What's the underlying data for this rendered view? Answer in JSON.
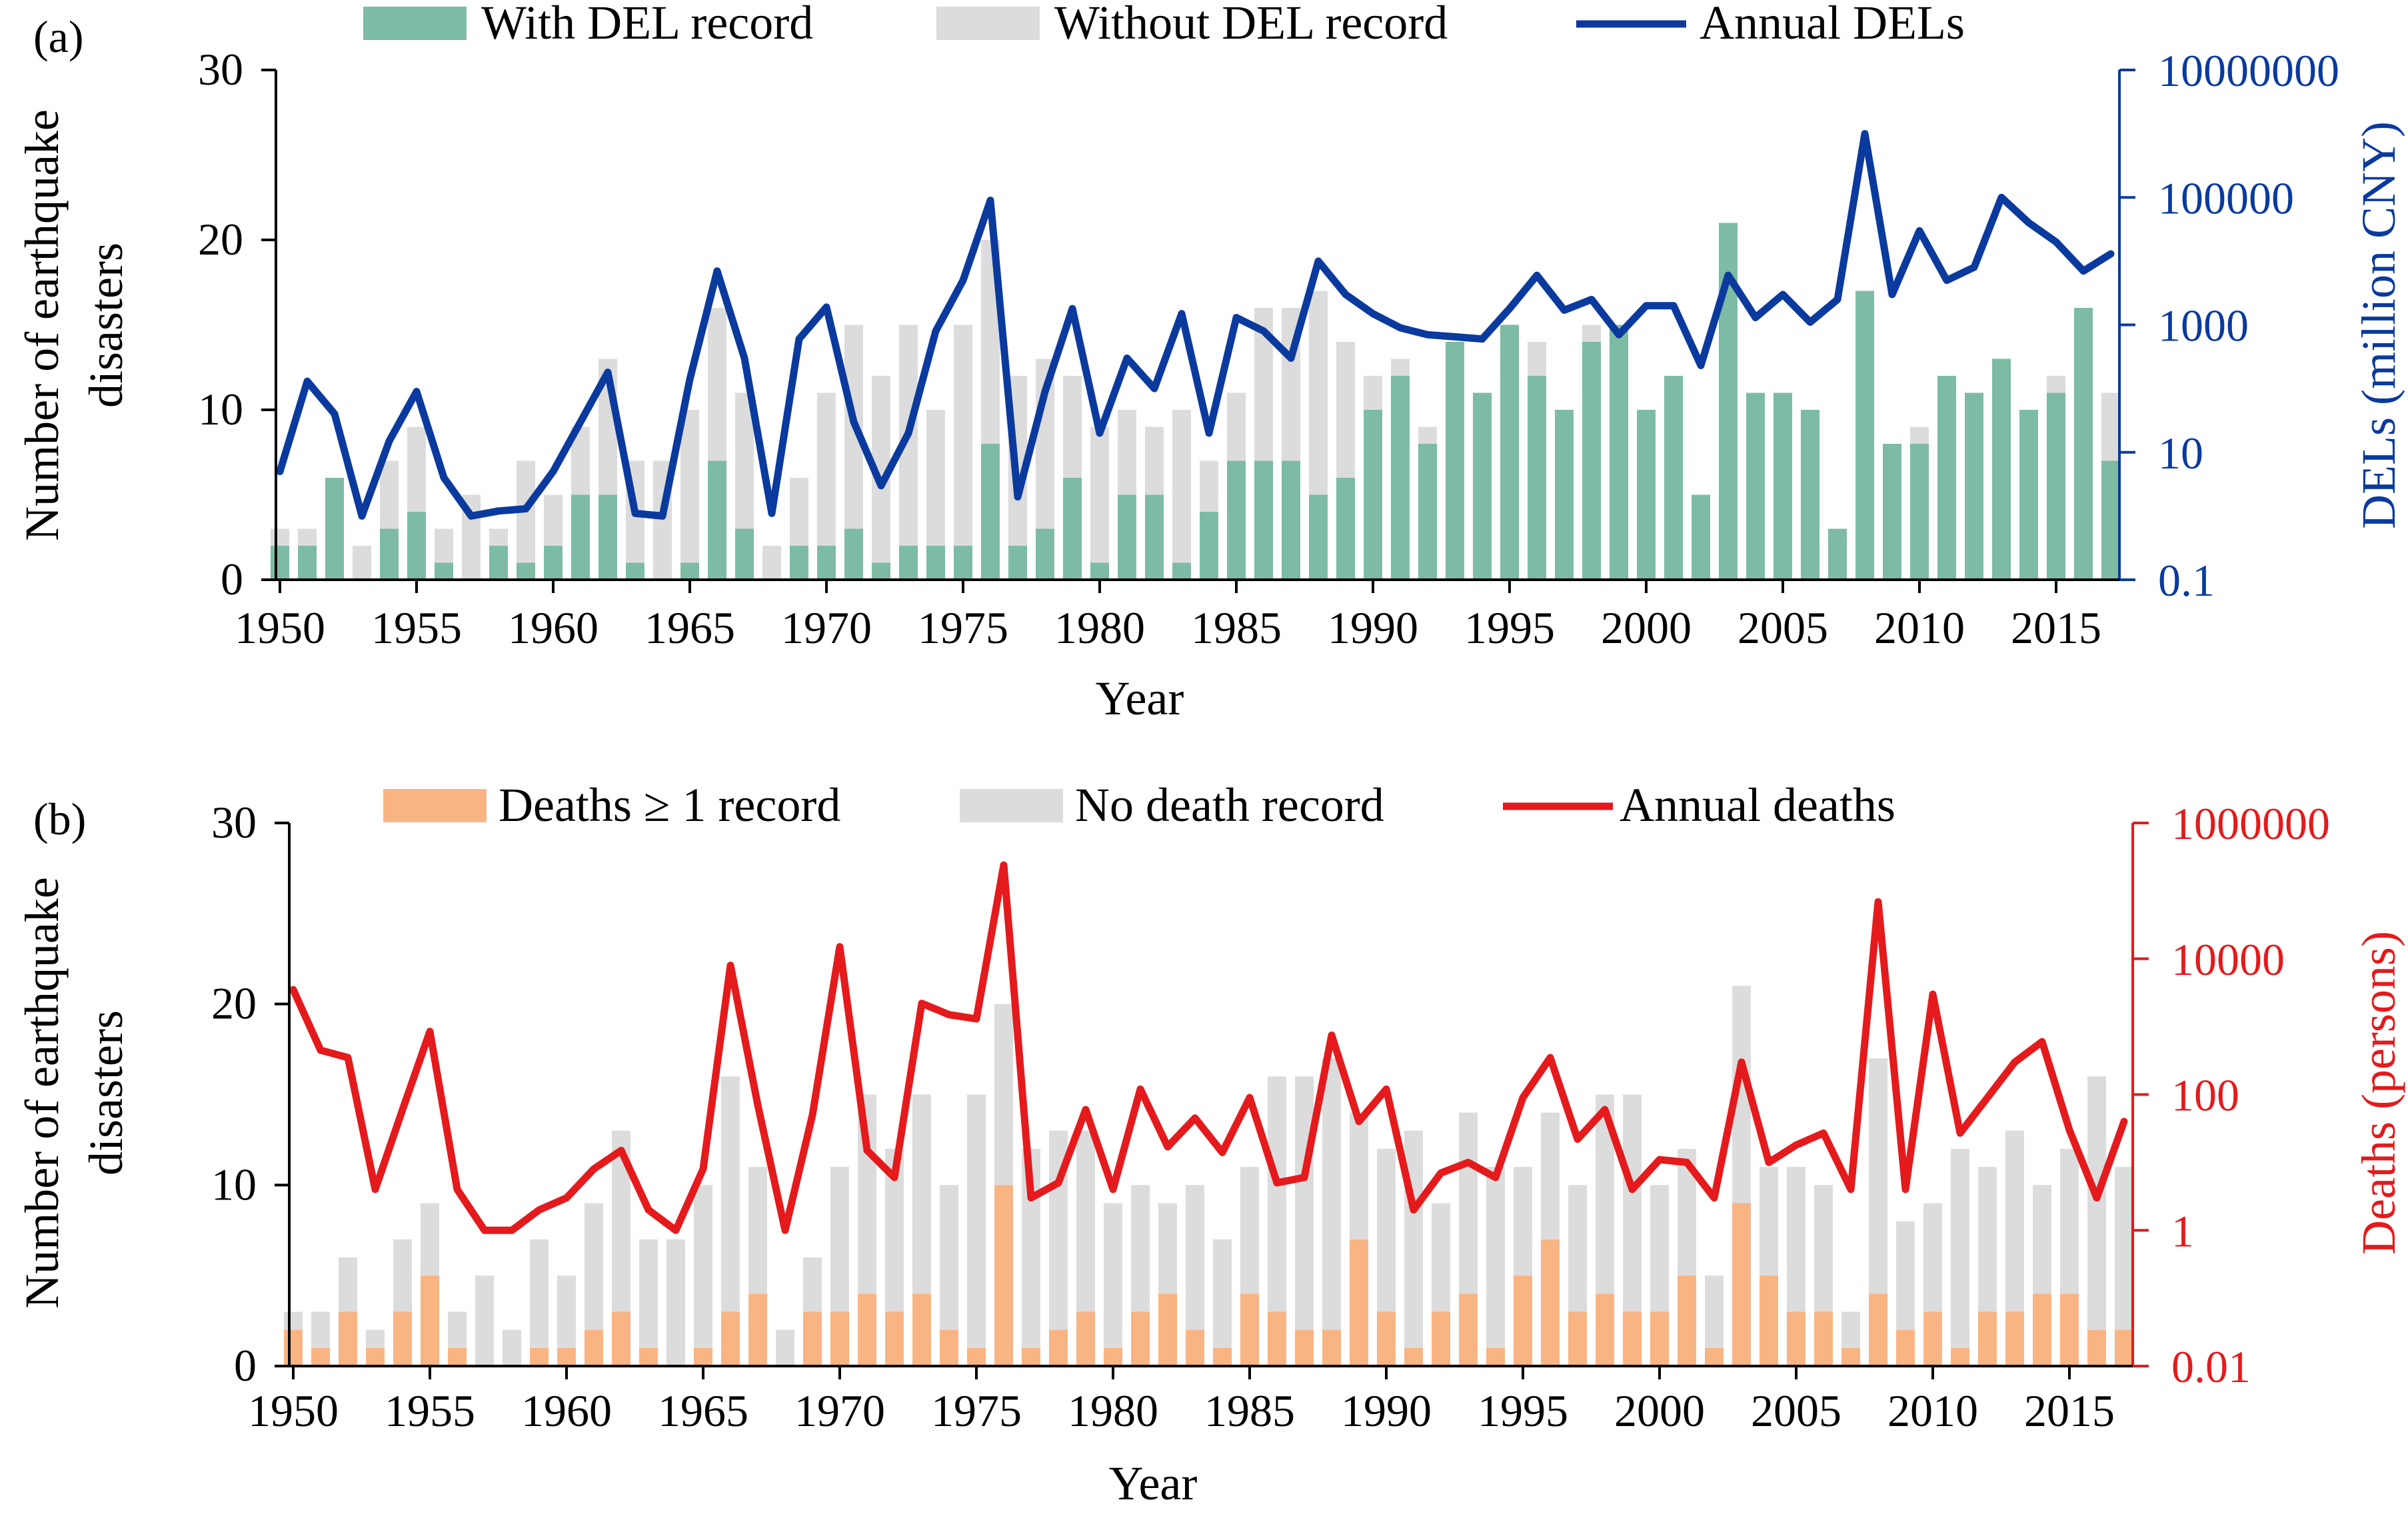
{
  "chart_data": [
    {
      "type": "bar",
      "panel_label": "(a)",
      "years": [
        1950,
        1951,
        1952,
        1953,
        1954,
        1955,
        1956,
        1957,
        1958,
        1959,
        1960,
        1961,
        1962,
        1963,
        1964,
        1965,
        1966,
        1967,
        1968,
        1969,
        1970,
        1971,
        1972,
        1973,
        1974,
        1975,
        1976,
        1977,
        1978,
        1979,
        1980,
        1981,
        1982,
        1983,
        1984,
        1985,
        1986,
        1987,
        1988,
        1989,
        1990,
        1991,
        1992,
        1993,
        1994,
        1995,
        1996,
        1997,
        1998,
        1999,
        2000,
        2001,
        2002,
        2003,
        2004,
        2005,
        2006,
        2007,
        2008,
        2009,
        2010,
        2011,
        2012,
        2013,
        2014,
        2015,
        2016,
        2017
      ],
      "x_tick_labels": [
        "1950",
        "1955",
        "1960",
        "1965",
        "1970",
        "1975",
        "1980",
        "1985",
        "1990",
        "1995",
        "2000",
        "2005",
        "2010",
        "2015"
      ],
      "xlabel": "Year",
      "ylabel_left": [
        "Number of earthquake",
        "disasters"
      ],
      "ylabel_right": "DELs (million CNY)",
      "ylim_left": [
        0,
        30
      ],
      "yticks_left": [
        "0",
        "10",
        "20",
        "30"
      ],
      "ylim_right_log": [
        0.1,
        10000000
      ],
      "yticks_right": [
        "0.1",
        "10",
        "1000",
        "100000",
        "10000000"
      ],
      "legend": {
        "position": "top",
        "entries": [
          "With DEL record",
          "Without DEL record",
          "Annual DELs"
        ]
      },
      "series": [
        {
          "name": "With DEL record",
          "kind": "stacked-bar-bottom",
          "color": "#7dbba4",
          "values": [
            2,
            2,
            6,
            0,
            3,
            4,
            1,
            0,
            2,
            1,
            2,
            5,
            5,
            1,
            0,
            1,
            7,
            3,
            0,
            2,
            2,
            3,
            1,
            2,
            2,
            2,
            8,
            2,
            3,
            6,
            1,
            5,
            5,
            1,
            4,
            7,
            7,
            7,
            5,
            6,
            10,
            12,
            8,
            14,
            11,
            15,
            12,
            10,
            14,
            15,
            10,
            12,
            5,
            21,
            11,
            11,
            10,
            3,
            17,
            8,
            8,
            12,
            11,
            13,
            10,
            11,
            16,
            7
          ]
        },
        {
          "name": "Without DEL record",
          "kind": "stacked-bar-top",
          "color": "#dcdcdc",
          "values": [
            1,
            1,
            0,
            2,
            4,
            5,
            2,
            5,
            1,
            6,
            3,
            4,
            8,
            6,
            7,
            9,
            9,
            8,
            2,
            4,
            9,
            12,
            11,
            13,
            8,
            13,
            12,
            10,
            10,
            6,
            8,
            5,
            4,
            9,
            3,
            4,
            9,
            9,
            12,
            8,
            2,
            1,
            1,
            0,
            0,
            0,
            2,
            0,
            1,
            0,
            0,
            0,
            0,
            0,
            0,
            0,
            0,
            0,
            0,
            0,
            1,
            0,
            0,
            0,
            0,
            1,
            0,
            4
          ]
        },
        {
          "name": "Annual DELs",
          "kind": "line-log",
          "color": "#0a3a9e",
          "values": [
            5,
            130,
            40,
            1,
            15,
            90,
            4,
            1,
            1.2,
            1.3,
            5,
            30,
            180,
            1.1,
            1.0,
            140,
            7000,
            300,
            1.1,
            600,
            1900,
            30,
            3,
            20,
            800,
            5000,
            90000,
            2,
            90,
            1800,
            20,
            300,
            100,
            1500,
            20,
            1300,
            800,
            300,
            10000,
            3000,
            1500,
            900,
            700,
            650,
            600,
            1800,
            6000,
            1700,
            2500,
            700,
            2000,
            2000,
            230,
            6000,
            1300,
            3000,
            1100,
            2500,
            1000000,
            3000,
            30000,
            5000,
            8000,
            100000,
            40000,
            20000,
            7000,
            13000
          ]
        }
      ]
    },
    {
      "type": "bar",
      "panel_label": "(b)",
      "years": [
        1950,
        1951,
        1952,
        1953,
        1954,
        1955,
        1956,
        1957,
        1958,
        1959,
        1960,
        1961,
        1962,
        1963,
        1964,
        1965,
        1966,
        1967,
        1968,
        1969,
        1970,
        1971,
        1972,
        1973,
        1974,
        1975,
        1976,
        1977,
        1978,
        1979,
        1980,
        1981,
        1982,
        1983,
        1984,
        1985,
        1986,
        1987,
        1988,
        1989,
        1990,
        1991,
        1992,
        1993,
        1994,
        1995,
        1996,
        1997,
        1998,
        1999,
        2000,
        2001,
        2002,
        2003,
        2004,
        2005,
        2006,
        2007,
        2008,
        2009,
        2010,
        2011,
        2012,
        2013,
        2014,
        2015,
        2016,
        2017
      ],
      "x_tick_labels": [
        "1950",
        "1955",
        "1960",
        "1965",
        "1970",
        "1975",
        "1980",
        "1985",
        "1990",
        "1995",
        "2000",
        "2005",
        "2010",
        "2015"
      ],
      "xlabel": "Year",
      "ylabel_left": [
        "Number of earthquake",
        "disasters"
      ],
      "ylabel_right": "Deaths (persons)",
      "ylim_left": [
        0,
        30
      ],
      "yticks_left": [
        "0",
        "10",
        "20",
        "30"
      ],
      "ylim_right_log": [
        0.01,
        1000000
      ],
      "yticks_right": [
        "0.01",
        "1",
        "100",
        "10000",
        "1000000"
      ],
      "legend": {
        "position": "top",
        "entries": [
          "Deaths ≥ 1 record",
          "No death record",
          "Annual deaths"
        ]
      },
      "series": [
        {
          "name": "Deaths ≥ 1 record",
          "kind": "stacked-bar-bottom",
          "color": "#f9b483",
          "values": [
            2,
            1,
            3,
            1,
            3,
            5,
            1,
            0,
            0,
            1,
            1,
            2,
            3,
            1,
            0,
            1,
            3,
            4,
            0,
            3,
            3,
            4,
            3,
            4,
            2,
            1,
            10,
            1,
            2,
            3,
            1,
            3,
            4,
            2,
            1,
            4,
            3,
            2,
            2,
            7,
            3,
            1,
            3,
            4,
            1,
            5,
            7,
            3,
            4,
            3,
            3,
            5,
            1,
            9,
            5,
            3,
            3,
            1,
            4,
            2,
            3,
            1,
            3,
            3,
            4,
            4,
            2,
            2
          ]
        },
        {
          "name": "No death record",
          "kind": "stacked-bar-top",
          "color": "#dcdcdc",
          "values": [
            1,
            2,
            3,
            1,
            4,
            4,
            2,
            5,
            2,
            6,
            4,
            7,
            10,
            6,
            7,
            9,
            13,
            7,
            2,
            3,
            8,
            11,
            9,
            11,
            8,
            14,
            10,
            11,
            11,
            10,
            8,
            7,
            5,
            8,
            6,
            7,
            13,
            14,
            15,
            7,
            9,
            12,
            6,
            10,
            10,
            6,
            7,
            7,
            11,
            12,
            7,
            7,
            4,
            12,
            6,
            8,
            7,
            2,
            13,
            6,
            6,
            11,
            8,
            10,
            6,
            8,
            14,
            9
          ]
        },
        {
          "name": "Annual deaths",
          "kind": "line-log",
          "color": "#e41a1c",
          "values": [
            3500,
            450,
            350,
            4,
            60,
            850,
            4,
            1,
            1,
            2,
            3,
            8,
            15,
            2,
            1,
            8,
            8000,
            70,
            1,
            50,
            15000,
            15,
            6,
            2200,
            1500,
            1300,
            240000,
            3,
            5,
            60,
            4,
            120,
            17,
            45,
            14,
            90,
            5,
            6,
            750,
            40,
            120,
            2,
            7,
            10,
            6,
            90,
            350,
            22,
            60,
            4,
            11,
            10,
            3,
            300,
            10,
            18,
            27,
            4,
            69000,
            4,
            3000,
            27,
            90,
            300,
            600,
            30,
            3,
            40
          ]
        }
      ]
    }
  ]
}
